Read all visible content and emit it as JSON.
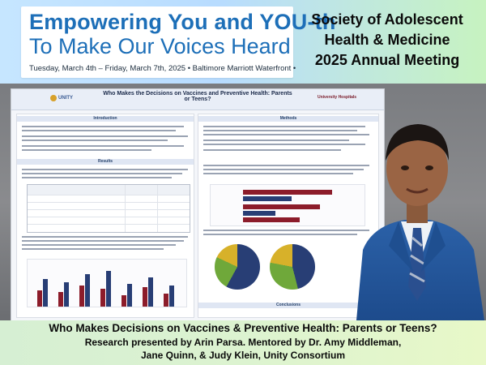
{
  "banner": {
    "logo_line1": "Empowering You and YOU-th",
    "logo_line2": "To Make Our Voices Heard",
    "logo_line3": "Tuesday, March 4th – Friday, March 7th, 2025  •  Baltimore Marriott Waterfront  •",
    "society_line1": "Society of Adolescent",
    "society_line2": "Health & Medicine",
    "society_line3": "2025 Annual Meeting"
  },
  "poster": {
    "title": "Who Makes the Decisions on Vaccines and Preventive Health: Parents or Teens?",
    "org_left": "UNITY",
    "org_right": "University Hospitals",
    "sections": [
      "Introduction",
      "Methods",
      "Results",
      "Conclusions"
    ]
  },
  "caption": {
    "line1": "Who Makes Decisions on Vaccines & Preventive Health: Parents or Teens?",
    "line2": "Research presented by Arin Parsa. Mentored by Dr. Amy Middleman,",
    "line3": "Jane Quinn, & Judy Klein, Unity Consortium"
  },
  "colors": {
    "brand_blue": "#1d6fb8",
    "banner_blue": "#b8dcff",
    "banner_green": "#c7f3c0",
    "caption_green": "#dcf3d0"
  }
}
